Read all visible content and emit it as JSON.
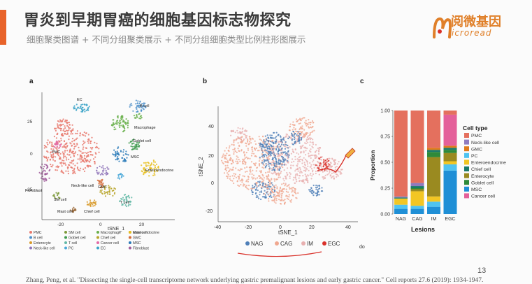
{
  "header": {
    "title": "胃炎到早期胃癌的细胞基因标志物探究",
    "subtitle": "细胞聚类图谱 + 不同分组聚类展示 + 不同分组细胞类型比例柱形图展示",
    "logo_cn": "阅微基因",
    "logo_en": "icroread"
  },
  "panel_a": {
    "label": "a",
    "xlabel": "tSNE_1",
    "yticks": [
      "25",
      "0",
      "-25"
    ],
    "xticks": [
      "-20",
      "0",
      "20"
    ],
    "cluster_labels": [
      "EC",
      "B cell",
      "Macrophage",
      "Goblet cell",
      "Enteroendocrine",
      "PMC",
      "Neck-like cell",
      "GMC",
      "Fibroblast",
      "SM cell",
      "Mast cell",
      "Chief cell",
      "T cell",
      "MSC"
    ],
    "legend": [
      {
        "name": "PMC",
        "color": "#e8786c"
      },
      {
        "name": "B cell",
        "color": "#4d8fc9"
      },
      {
        "name": "Enterocyte",
        "color": "#d89a2a"
      },
      {
        "name": "Neck-like cell",
        "color": "#8f74b8"
      },
      {
        "name": "SM cell",
        "color": "#7d9a3a"
      },
      {
        "name": "Goblet cell",
        "color": "#3f9a4f"
      },
      {
        "name": "T cell",
        "color": "#62b8a6"
      },
      {
        "name": "PC",
        "color": "#4aa8d8"
      },
      {
        "name": "Macrophage",
        "color": "#6ab04c"
      },
      {
        "name": "Chief cell",
        "color": "#b8a52a"
      },
      {
        "name": "Cancer cell",
        "color": "#e36aa6"
      },
      {
        "name": "EC",
        "color": "#3aa3c8"
      },
      {
        "name": "Mast cell",
        "color": "#9b6a3a"
      },
      {
        "name": "GMC",
        "color": "#d36b3a"
      },
      {
        "name": "MSC",
        "color": "#2a7ab8"
      },
      {
        "name": "Fibroblast",
        "color": "#a05a9a"
      },
      {
        "name": "Enteroendocrine",
        "color": "#e8c020"
      }
    ]
  },
  "panel_b": {
    "label": "b",
    "xlabel": "tSNE_1",
    "ylabel": "tSNE_2",
    "xticks": [
      "-40",
      "-20",
      "0",
      "20",
      "40"
    ],
    "yticks": [
      "40",
      "20",
      "0",
      "-20"
    ],
    "legend": [
      {
        "name": "NAG",
        "color": "#4f7fb8"
      },
      {
        "name": "CAG",
        "color": "#f0a890"
      },
      {
        "name": "IM",
        "color": "#e8b0b0"
      },
      {
        "name": "EGC",
        "color": "#d9312a"
      }
    ],
    "stray_text": "docrine"
  },
  "panel_c": {
    "label": "c",
    "chart_data": {
      "type": "bar",
      "stacked": true,
      "title": "",
      "xlabel": "Lesions",
      "ylabel": "Proportion",
      "ylim": [
        0,
        1
      ],
      "yticks": [
        "0.00",
        "0.25",
        "0.50",
        "0.75",
        "1.00"
      ],
      "categories": [
        "NAG",
        "CAG",
        "IM",
        "EGC"
      ],
      "legend_title": "Cell type",
      "series": [
        {
          "name": "MSC",
          "color": "#1f8fd6",
          "values": [
            0.05,
            0.05,
            0.07,
            0.42
          ]
        },
        {
          "name": "PC",
          "color": "#4fc3f0",
          "values": [
            0.04,
            0.03,
            0.05,
            0.06
          ]
        },
        {
          "name": "Enteroendocrine",
          "color": "#f2c623",
          "values": [
            0.06,
            0.14,
            0.05,
            0.03
          ]
        },
        {
          "name": "Enterocyte",
          "color": "#9a8a20",
          "values": [
            0.0,
            0.02,
            0.38,
            0.08
          ]
        },
        {
          "name": "Goblet cell",
          "color": "#2e8a3a",
          "values": [
            0.0,
            0.01,
            0.05,
            0.03
          ]
        },
        {
          "name": "Chief cell",
          "color": "#1a7a6a",
          "values": [
            0.01,
            0.02,
            0.02,
            0.02
          ]
        },
        {
          "name": "GMC",
          "color": "#e07a1a",
          "values": [
            0.0,
            0.0,
            0.02,
            0.02
          ]
        },
        {
          "name": "Neck-like cell",
          "color": "#8f7bbf",
          "values": [
            0.01,
            0.03,
            0.0,
            0.0
          ]
        },
        {
          "name": "Cancer cell",
          "color": "#e4609a",
          "values": [
            0.0,
            0.0,
            0.0,
            0.3
          ]
        },
        {
          "name": "PMC",
          "color": "#e4705e",
          "values": [
            0.83,
            0.7,
            0.36,
            0.04
          ]
        }
      ],
      "legend_order": [
        "PMC",
        "Neck-like cell",
        "GMC",
        "PC",
        "Enteroendocrine",
        "Chief cell",
        "Enterocyte",
        "Goblet cell",
        "MSC",
        "Cancer cell"
      ]
    }
  },
  "footer": {
    "citation": "Zhang, Peng, et al. \"Dissecting the single-cell transcriptome network underlying gastric premalignant lesions and early gastric cancer.\" Cell reports 27.6 (2019): 1934-1947.",
    "page_number": "13"
  }
}
